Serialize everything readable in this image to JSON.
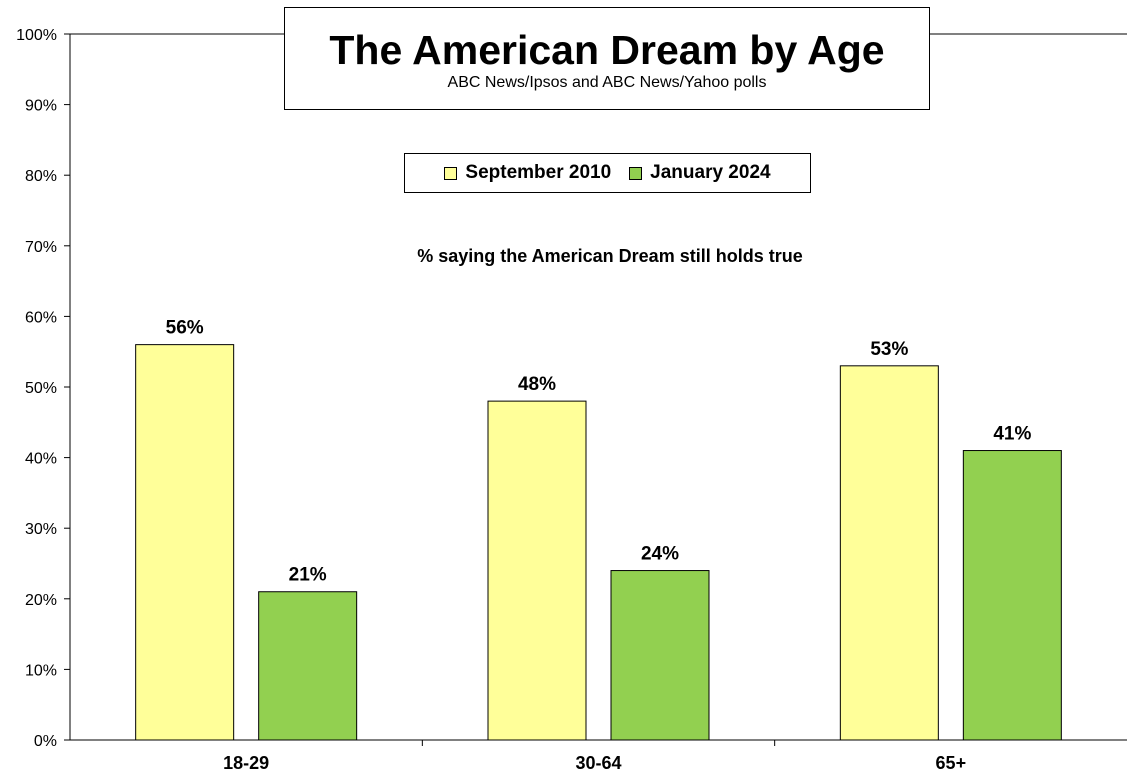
{
  "chart_data": {
    "type": "bar",
    "title": "The American Dream by Age",
    "subtitle": "ABC News/Ipsos and ABC News/Yahoo polls",
    "annotation": "% saying the American Dream still holds true",
    "categories": [
      "18-29",
      "30-64",
      "65+"
    ],
    "series": [
      {
        "name": "September 2010",
        "values": [
          56,
          48,
          53
        ],
        "labels": [
          "56%",
          "48%",
          "53%"
        ],
        "color": "#ffff99"
      },
      {
        "name": "January 2024",
        "values": [
          21,
          24,
          41
        ],
        "labels": [
          "21%",
          "24%",
          "41%"
        ],
        "color": "#92d050"
      }
    ],
    "ylim": [
      0,
      100
    ],
    "yticks": [
      0,
      10,
      20,
      30,
      40,
      50,
      60,
      70,
      80,
      90,
      100
    ],
    "ytick_labels": [
      "0%",
      "10%",
      "20%",
      "30%",
      "40%",
      "50%",
      "60%",
      "70%",
      "80%",
      "90%",
      "100%"
    ],
    "xlabel": "",
    "ylabel": "",
    "grid": false,
    "legend_position": "top-center"
  }
}
